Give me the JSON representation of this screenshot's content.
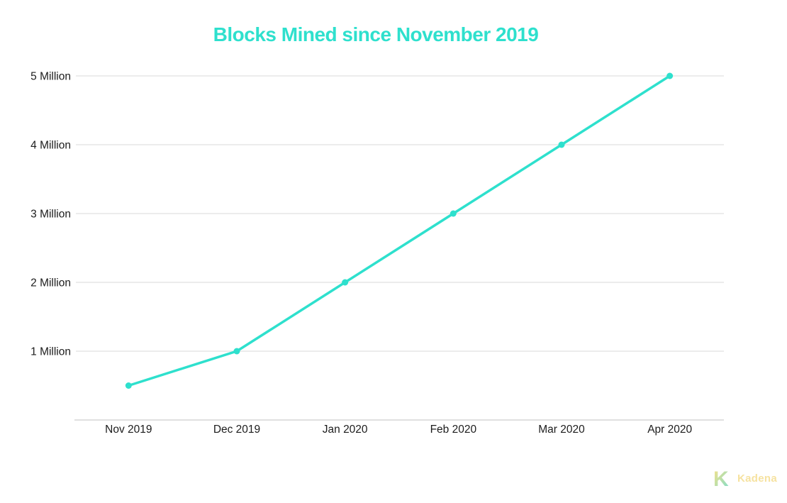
{
  "chart_data": {
    "type": "line",
    "title": "Blocks Mined since November 2019",
    "categories": [
      "Nov 2019",
      "Dec 2019",
      "Jan 2020",
      "Feb 2020",
      "Mar 2020",
      "Apr 2020"
    ],
    "series": [
      {
        "name": "Blocks Mined",
        "values": [
          0.5,
          1,
          2,
          3,
          4,
          5
        ]
      }
    ],
    "unit": "Million",
    "yticks": [
      {
        "value": 1,
        "label": "1 Million"
      },
      {
        "value": 2,
        "label": "2 Million"
      },
      {
        "value": 3,
        "label": "3 Million"
      },
      {
        "value": 4,
        "label": "4 Million"
      },
      {
        "value": 5,
        "label": "5 Million"
      }
    ],
    "ylim": [
      0,
      5.5
    ],
    "grid": "horizontal",
    "legend": "none",
    "line_color": "#2ee0cd",
    "grid_color": "#ececec",
    "axis_color": "#e0e0e0",
    "label_color": "#1c1c1c",
    "title_color": "#2ee0cd"
  },
  "footer": {
    "brand": "Kadena",
    "brand_text_color": "#f6e2a0",
    "logo_gradient_start": "#fbe287",
    "logo_gradient_end": "#7cdccb"
  }
}
